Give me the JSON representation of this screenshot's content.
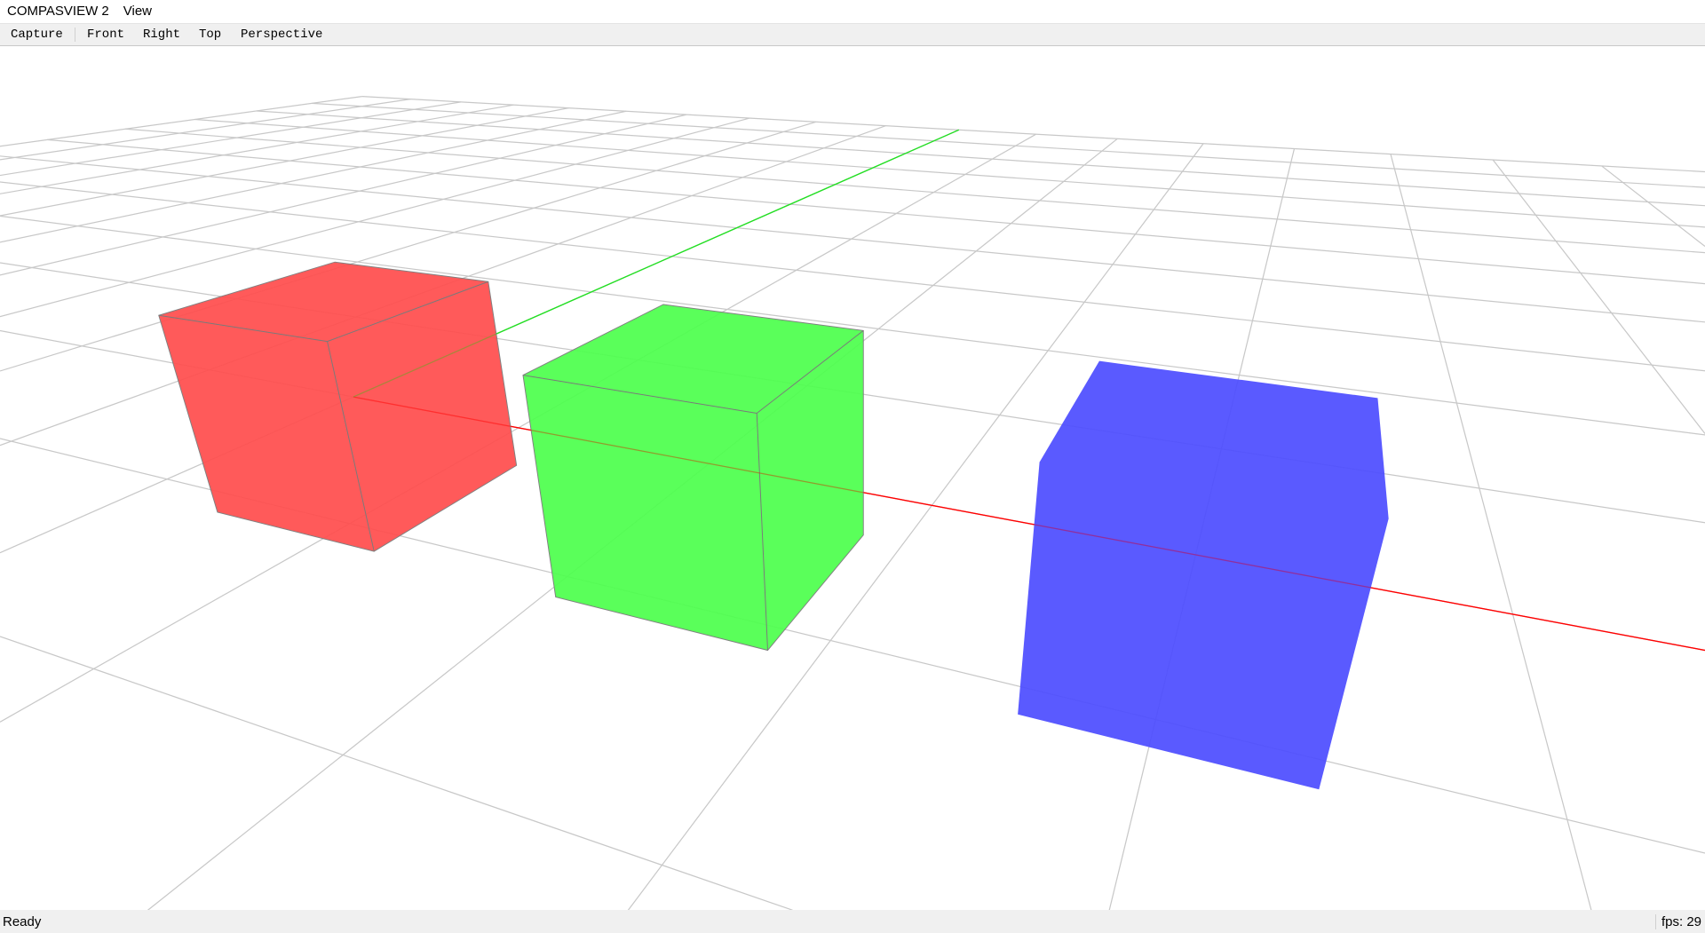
{
  "window": {
    "title": "COMPASVIEW 2",
    "menu": [
      "View"
    ]
  },
  "toolbar": {
    "items": [
      "Capture",
      "Front",
      "Right",
      "Top",
      "Perspective"
    ]
  },
  "scene": {
    "grid_color": "#c8c8c8",
    "axes": {
      "x_color": "#ff0000",
      "y_color": "#22e022"
    },
    "boxes": [
      {
        "name": "red-box",
        "color": "#ff4d4d"
      },
      {
        "name": "green-box",
        "color": "#4dff4d"
      },
      {
        "name": "blue-box",
        "color": "#4d4dff"
      }
    ]
  },
  "status": {
    "text": "Ready",
    "fps": "fps: 29"
  }
}
